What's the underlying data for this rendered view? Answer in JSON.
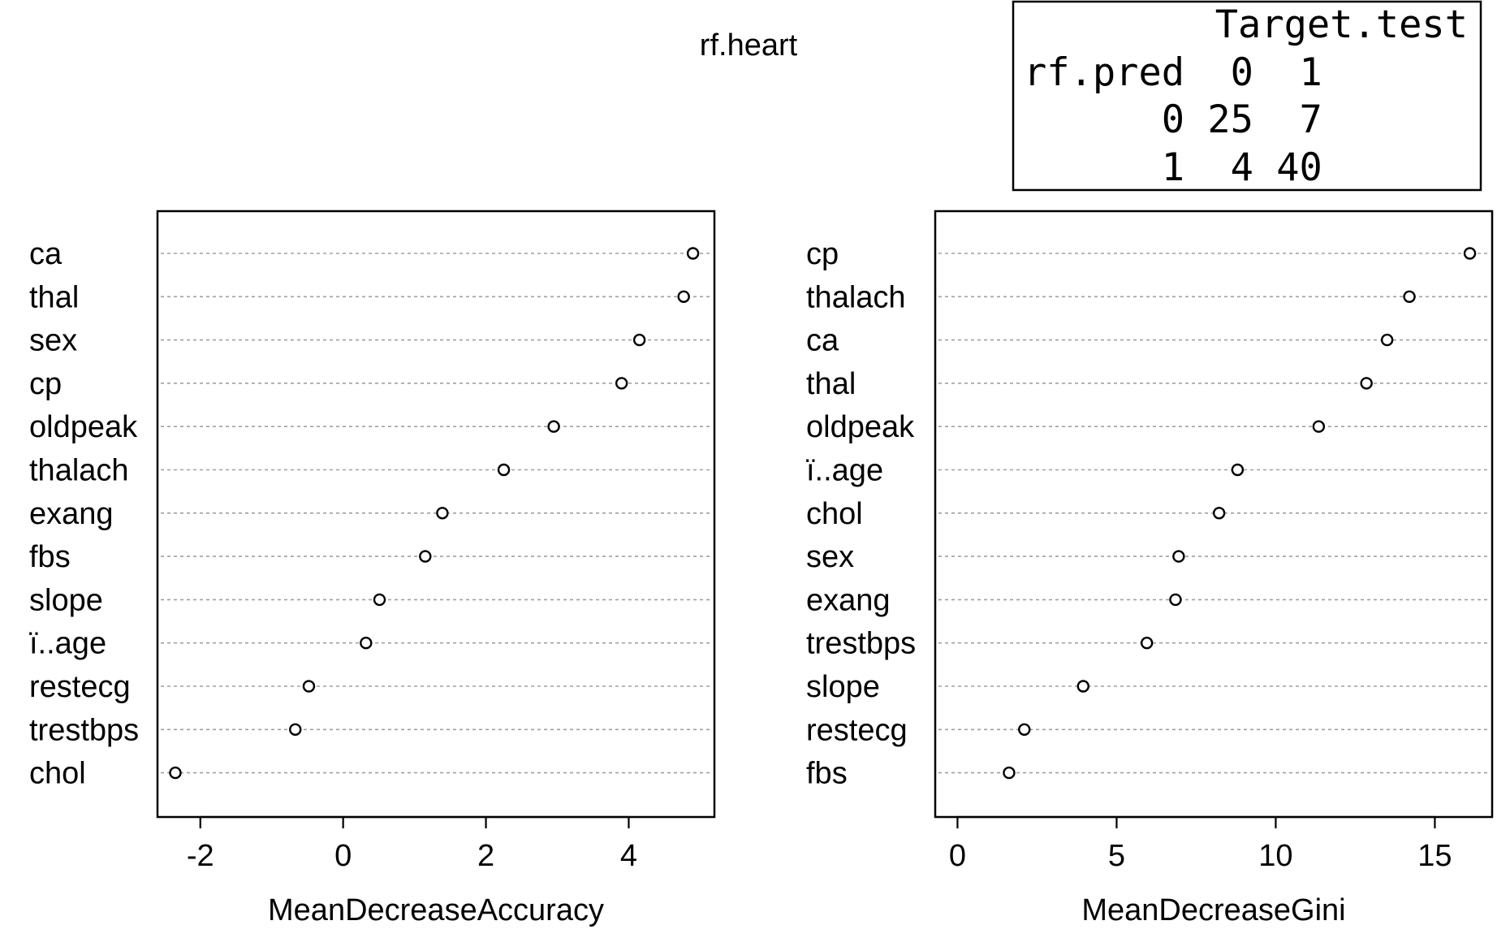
{
  "chart_data": [
    {
      "type": "scatter",
      "title": "rf.heart",
      "xlabel": "MeanDecreaseAccuracy",
      "ylabel": "",
      "xlim": [
        -2.6,
        5.2
      ],
      "xticks": [
        -2,
        0,
        2,
        4
      ],
      "grid": true,
      "categories": [
        "ca",
        "thal",
        "sex",
        "cp",
        "oldpeak",
        "thalach",
        "exang",
        "fbs",
        "slope",
        "ï..age",
        "restecg",
        "trestbps",
        "chol"
      ],
      "values": [
        4.9,
        4.77,
        4.15,
        3.9,
        2.95,
        2.25,
        1.39,
        1.15,
        0.51,
        0.32,
        -0.48,
        -0.67,
        -2.35
      ]
    },
    {
      "type": "scatter",
      "title": "",
      "xlabel": "MeanDecreaseGini",
      "ylabel": "",
      "xlim": [
        -0.7,
        16.8
      ],
      "xticks": [
        0,
        5,
        10,
        15
      ],
      "grid": true,
      "categories": [
        "cp",
        "thalach",
        "ca",
        "thal",
        "oldpeak",
        "ï..age",
        "chol",
        "sex",
        "exang",
        "trestbps",
        "slope",
        "restecg",
        "fbs"
      ],
      "values": [
        16.1,
        14.2,
        13.5,
        12.85,
        11.35,
        8.8,
        8.22,
        6.95,
        6.85,
        5.95,
        3.95,
        2.1,
        1.62
      ]
    }
  ],
  "confusion_table": {
    "header_line": "Target.test",
    "rows": [
      "rf.pred  0  1",
      "      0 25  7",
      "      1  4 40"
    ]
  }
}
